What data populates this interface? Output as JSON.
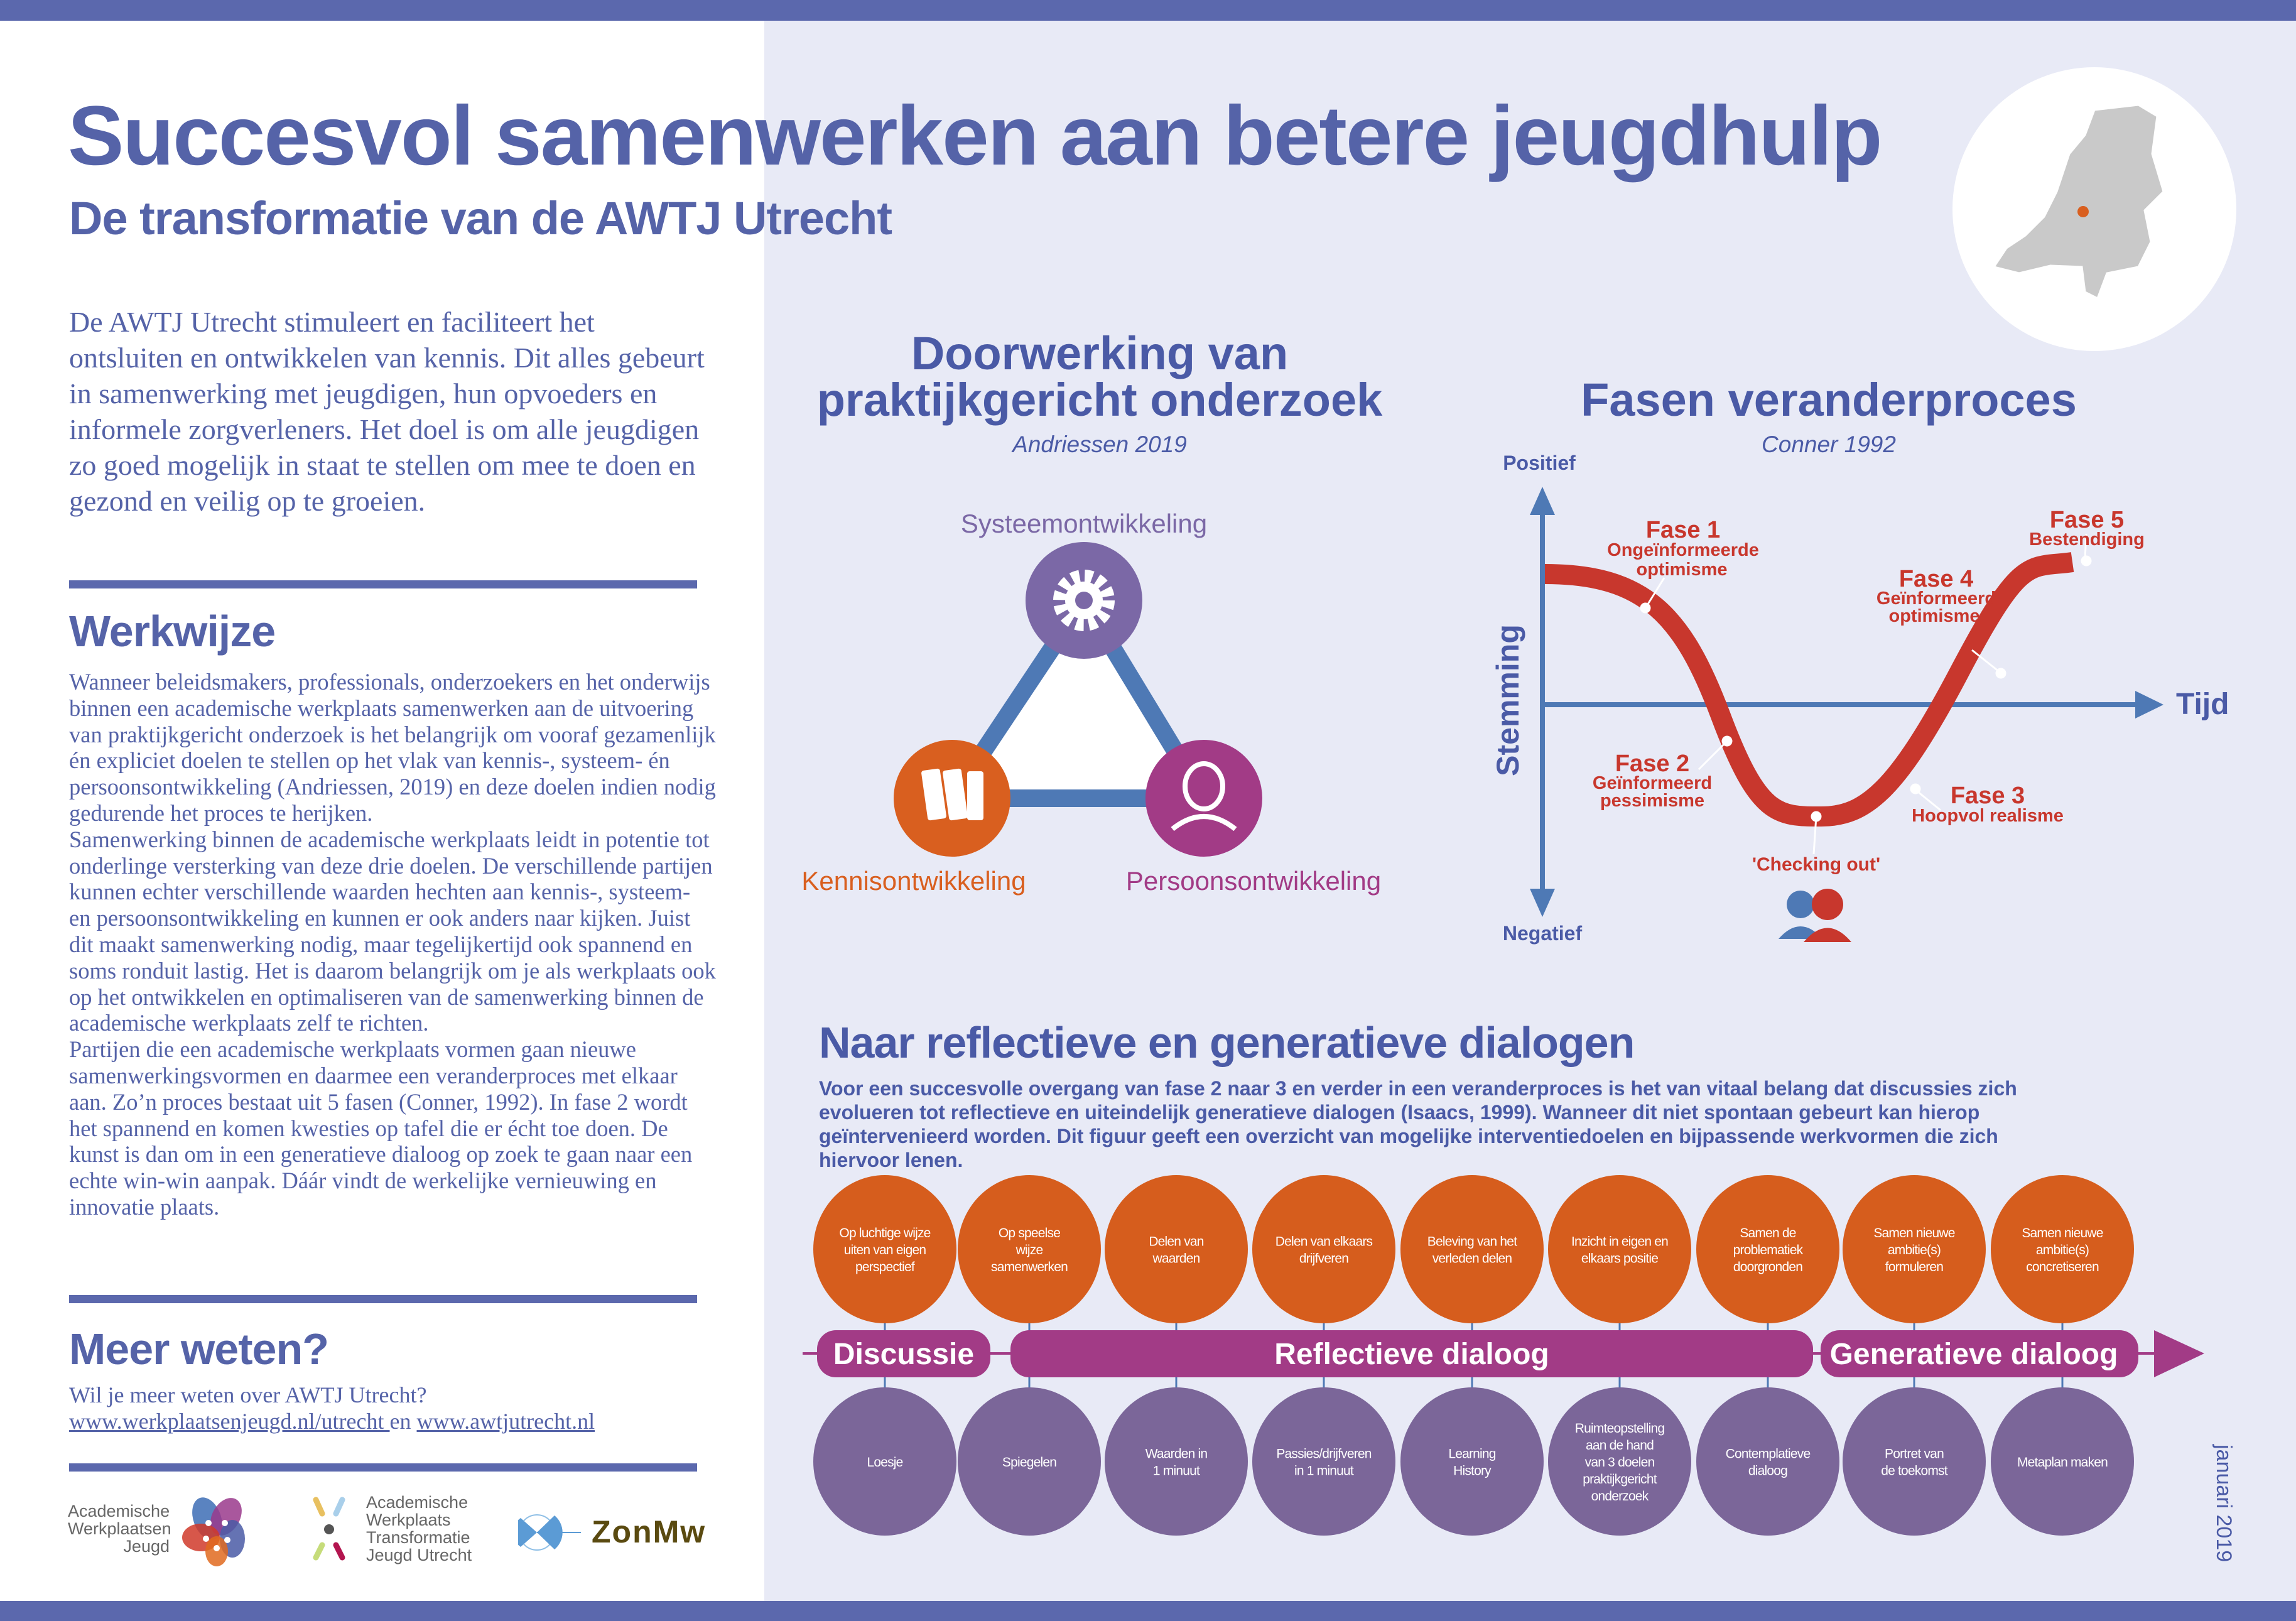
{
  "header": {
    "title": "Succesvol samenwerken aan betere jeugdhulp",
    "subtitle": "De transformatie van de AWTJ Utrecht"
  },
  "intro": "De AWTJ Utrecht stimuleert en faciliteert het ontsluiten en ontwikkelen van kennis. Dit alles gebeurt in samenwerking met jeugdigen, hun opvoeders en informele zorgverleners. Het doel is om alle jeugdigen zo goed mogelijk in staat te stellen om mee te doen en gezond en veilig op te groeien.",
  "werkwijze": {
    "heading": "Werkwijze",
    "paragraphs": [
      "Wanneer beleidsmakers, professionals, onderzoekers en het onderwijs binnen een academische werkplaats samenwerken aan de uitvoering van praktijkgericht onderzoek is het belangrijk om vooraf gezamenlijk én expliciet doelen te stellen op het vlak van kennis-, systeem- én persoonsontwikkeling (Andriessen, 2019) en deze doelen indien nodig gedurende het proces te herijken.",
      "Samenwerking binnen de academische werkplaats leidt in potentie tot onderlinge versterking van deze drie doelen. De verschillende partijen kunnen echter verschillende waarden hechten aan kennis-, systeem- en persoonsontwikkeling en kunnen er ook anders naar kijken. Juist dit maakt samenwerking nodig, maar tegelijkertijd ook spannend en soms ronduit lastig. Het is daarom belangrijk om je als werkplaats ook op het ontwikkelen en optimaliseren van de samenwerking binnen de academische werkplaats zelf te richten.",
      "Partijen die een academische werkplaats vormen gaan nieuwe samenwerkingsvormen en daarmee een veranderproces met elkaar aan. Zo’n proces bestaat uit 5 fasen (Conner, 1992). In fase 2 wordt het spannend en komen kwesties op tafel die er écht toe doen. De kunst is dan om in een generatieve dialoog op zoek te gaan naar een echte win-win aanpak. Dáár vindt de werkelijke vernieuwing en innovatie plaats."
    ]
  },
  "more": {
    "heading": "Meer weten?",
    "question": "Wil je meer weten over AWTJ Utrecht?",
    "link1": "www.werkplaatsenjeugd.nl/utrecht ",
    "connector": " en ",
    "link2": "www.awtjutrecht.nl"
  },
  "logos": {
    "awj": [
      "Academische",
      "Werkplaatsen",
      "Jeugd"
    ],
    "awtju": [
      "Academische",
      "Werkplaats",
      "Transformatie",
      "Jeugd Utrecht"
    ],
    "zonmw": "ZonMw"
  },
  "doorwerking": {
    "title_line1": "Doorwerking van",
    "title_line2": "praktijkgericht onderzoek",
    "source": "Andriessen 2019",
    "nodes": {
      "systeem": "Systeemontwikkeling",
      "kennis": "Kennisontwikkeling",
      "persoon": "Persoonsontwikkeling"
    },
    "icons": {
      "systeem": "gear-icon",
      "kennis": "books-icon",
      "persoon": "person-icon"
    },
    "colors": {
      "systeem": "#7b68a6",
      "kennis": "#d95f1f",
      "persoon": "#a23b86",
      "triangle": "#4e79b5"
    }
  },
  "fasen": {
    "title": "Fasen veranderproces",
    "source": "Conner 1992",
    "y_top": "Positief",
    "y_bottom": "Negatief",
    "y_label": "Stemming",
    "x_label": "Tijd",
    "phases": [
      {
        "name": "Fase 1",
        "desc1": "Ongeïnformeerde",
        "desc2": "optimisme"
      },
      {
        "name": "Fase 2",
        "desc1": "Geïnformeerd",
        "desc2": "pessimisme"
      },
      {
        "name": "Fase 3",
        "desc1": "Hoopvol realisme",
        "desc2": ""
      },
      {
        "name": "Fase 4",
        "desc1": "Geïnformeerd",
        "desc2": "optimisme"
      },
      {
        "name": "Fase 5",
        "desc1": "Bestendiging",
        "desc2": ""
      }
    ],
    "checking_out": "'Checking out'",
    "curve_color": "#c8372d"
  },
  "dialogen": {
    "title": "Naar reflectieve en generatieve dialogen",
    "text": "Voor een succesvolle overgang van fase 2 naar 3 en verder in een veranderproces is het van vitaal belang dat discussies zich evolueren tot reflectieve en uiteindelijk generatieve dialogen (Isaacs, 1999). Wanneer dit niet spontaan gebeurt kan hierop geïntervenieerd worden. Dit figuur geeft een overzicht van mogelijke interventiedoelen en bijpassende werkvormen die zich hiervoor lenen.",
    "goals": [
      [
        "Op luchtige wijze",
        "uiten van eigen",
        "perspectief"
      ],
      [
        "Op speelse",
        "wijze",
        "samenwerken"
      ],
      [
        "Delen van",
        "waarden"
      ],
      [
        "Delen van elkaars",
        "drijfveren"
      ],
      [
        "Beleving van het",
        "verleden delen"
      ],
      [
        "Inzicht in eigen en",
        "elkaars positie"
      ],
      [
        "Samen de",
        "problematiek",
        "doorgronden"
      ],
      [
        "Samen nieuwe",
        "ambitie(s)",
        "formuleren"
      ],
      [
        "Samen nieuwe",
        "ambitie(s)",
        "concretiseren"
      ]
    ],
    "methods": [
      [
        "Loesje"
      ],
      [
        "Spiegelen"
      ],
      [
        "Waarden in",
        "1 minuut"
      ],
      [
        "Passies/drijfveren",
        "in 1 minuut"
      ],
      [
        "Learning",
        "History"
      ],
      [
        "Ruimteopstelling",
        "aan de hand",
        "van 3 doelen",
        "praktijkgericht",
        "onderzoek"
      ],
      [
        "Contemplatieve",
        "dialoog"
      ],
      [
        "Portret van",
        "de toekomst"
      ],
      [
        "Metaplan maken"
      ]
    ],
    "stages": [
      "Discussie",
      "Reflectieve dialoog",
      "Generatieve dialoog"
    ],
    "colors": {
      "goal": "#d65d1d",
      "method": "#7b6699",
      "band": "#a23b86"
    }
  },
  "date": "januari 2019"
}
